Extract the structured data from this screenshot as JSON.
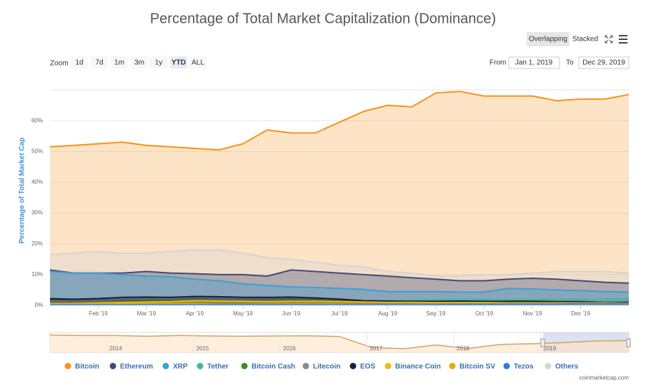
{
  "ui": {
    "view_buttons": [
      "Overlapping",
      "Stacked"
    ],
    "zoom_label": "Zoom",
    "zoom_buttons": [
      "1d",
      "7d",
      "1m",
      "3m",
      "1y",
      "YTD",
      "ALL"
    ],
    "zoom_selected": 5,
    "from_label": "From",
    "from_value": "Jan 1, 2019",
    "to_label": "To",
    "to_value": "Dec 29, 2019",
    "credit": "coinmarketcap.com"
  },
  "chart_data": {
    "type": "area",
    "title": "Percentage of Total Market Capitalization (Dominance)",
    "y_label": "Percentage of Total Market Cap",
    "categories": [
      null,
      null,
      "Feb '19",
      null,
      "Mar '19",
      null,
      "Apr '19",
      null,
      "May '19",
      null,
      "Jun '19",
      null,
      "Jul '19",
      null,
      "Aug '19",
      null,
      "Sep '19",
      null,
      "Oct '19",
      null,
      "Nov '19",
      null,
      "Dec '19",
      null,
      null
    ],
    "ylim": [
      0,
      70
    ],
    "yticks": [
      {
        "value": 0,
        "label": "0%"
      },
      {
        "value": 10,
        "label": "10%"
      },
      {
        "value": 20,
        "label": "20%"
      },
      {
        "value": 30,
        "label": "30%"
      },
      {
        "value": 40,
        "label": "40%"
      },
      {
        "value": 50,
        "label": "50%"
      },
      {
        "value": 60,
        "label": "60%"
      }
    ],
    "grid": true,
    "series": [
      {
        "name": "Bitcoin",
        "color": "#f7931a",
        "values": [
          51.5,
          52,
          52.5,
          53,
          52,
          51.5,
          51,
          50.5,
          52.5,
          57,
          56,
          56,
          59.5,
          63,
          65,
          64.5,
          69,
          69.5,
          68,
          68,
          68,
          66.5,
          67,
          67,
          68.5
        ]
      },
      {
        "name": "Ethereum",
        "color": "#454a75",
        "values": [
          11.5,
          10.5,
          10.5,
          10.5,
          11,
          10.5,
          10.3,
          10,
          10,
          9.5,
          11.5,
          11,
          10.5,
          10,
          9.5,
          9,
          8.5,
          8,
          8,
          8.5,
          8.8,
          8.5,
          8,
          7.5,
          7.2
        ]
      },
      {
        "name": "XRP",
        "color": "#3aa0d6",
        "values": [
          11,
          10.5,
          10.5,
          10,
          9.5,
          9.3,
          8.5,
          8,
          7,
          6.5,
          6,
          5.8,
          5.5,
          5.2,
          4.5,
          4.5,
          4.5,
          4.3,
          4.3,
          5.5,
          5.3,
          5,
          4.8,
          4.5,
          4.3
        ]
      },
      {
        "name": "Tether",
        "color": "#45b69c",
        "values": [
          1.7,
          1.6,
          1.7,
          1.9,
          2,
          2,
          2.1,
          2.2,
          2.2,
          2,
          1.8,
          1.7,
          1.6,
          1.5,
          1.6,
          1.7,
          1.8,
          1.9,
          1.9,
          1.9,
          1.9,
          2,
          2,
          2,
          2.1
        ]
      },
      {
        "name": "Bitcoin Cash",
        "color": "#3b8b2a",
        "values": [
          2.3,
          1.9,
          1.9,
          1.7,
          1.6,
          1.6,
          2.2,
          2.2,
          2.1,
          2.1,
          2.2,
          2.1,
          1.8,
          1.3,
          1.2,
          1.1,
          1.1,
          1.1,
          1,
          1.4,
          1.4,
          1.2,
          1,
          1,
          1
        ]
      },
      {
        "name": "Litecoin",
        "color": "#8a8a8a",
        "values": [
          1.4,
          1.5,
          1.9,
          2.1,
          2.3,
          2.4,
          2.6,
          2.3,
          2.3,
          2.4,
          2.6,
          2.4,
          2.2,
          1.6,
          1.4,
          1.2,
          1.1,
          1.1,
          1,
          0.9,
          0.9,
          0.9,
          0.8,
          0.8,
          0.8
        ]
      },
      {
        "name": "EOS",
        "color": "#1c1c3c",
        "values": [
          2.1,
          2,
          2.2,
          2.6,
          2.7,
          2.6,
          2.9,
          2.8,
          2.6,
          2.6,
          2.7,
          2.4,
          2,
          1.5,
          1.4,
          1.3,
          1.3,
          1.4,
          1.3,
          1.3,
          1.3,
          1.2,
          1.2,
          1,
          1
        ]
      },
      {
        "name": "Binance Coin",
        "color": "#f0b90b",
        "values": [
          0.5,
          0.6,
          0.8,
          0.9,
          1.1,
          1.2,
          1.5,
          1.4,
          1.3,
          1.2,
          1.3,
          1.3,
          1.2,
          1.1,
          1,
          1,
          0.9,
          0.9,
          0.9,
          0.8,
          0.8,
          0.8,
          0.8,
          0.8,
          0.7
        ]
      },
      {
        "name": "Bitcoin SV",
        "color": "#e6ae00",
        "values": [
          0.6,
          0.6,
          0.6,
          0.5,
          0.5,
          0.5,
          0.5,
          0.3,
          0.3,
          0.4,
          0.4,
          0.4,
          0.4,
          0.3,
          0.3,
          0.3,
          0.3,
          0.3,
          0.3,
          0.3,
          0.4,
          0.3,
          0.4,
          0.4,
          0.4
        ]
      },
      {
        "name": "Tezos",
        "color": "#2c7be5",
        "values": [
          0.2,
          0.2,
          0.2,
          0.2,
          0.2,
          0.2,
          0.2,
          0.2,
          0.2,
          0.2,
          0.2,
          0.2,
          0.2,
          0.2,
          0.2,
          0.2,
          0.2,
          0.3,
          0.3,
          0.4,
          0.4,
          0.4,
          0.5,
          0.5,
          0.5
        ]
      },
      {
        "name": "Others",
        "color": "#d4d4d4",
        "values": [
          16.5,
          17,
          17.5,
          17,
          17,
          17.5,
          18,
          18,
          17,
          15.5,
          15,
          14,
          13,
          12.5,
          11,
          10.5,
          9.5,
          9.5,
          10,
          10,
          10.5,
          11,
          11,
          11,
          10.5
        ]
      }
    ],
    "navigator": {
      "labels": [
        "2014",
        "2015",
        "2016",
        "2017",
        "2018",
        "2019"
      ],
      "ylim": [
        20,
        100
      ],
      "values": [
        90,
        88,
        88,
        85,
        88,
        86,
        85,
        86,
        87,
        84,
        40,
        35,
        50,
        36,
        52,
        55,
        60,
        66,
        68
      ]
    }
  }
}
